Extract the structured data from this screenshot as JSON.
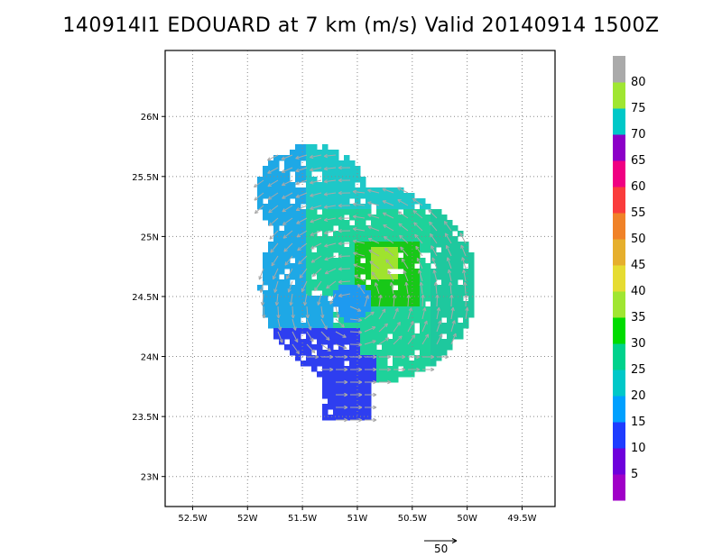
{
  "chart_data": {
    "type": "heatmap",
    "title": "140914I1 EDOUARD at 7 km (m/s) Valid 20140914 1500Z",
    "x_axis": {
      "range_deg_west": [
        52.75,
        49.2
      ],
      "ticks": [
        {
          "value": 52.5,
          "label": "52.5W"
        },
        {
          "value": 52.0,
          "label": "52W"
        },
        {
          "value": 51.5,
          "label": "51.5W"
        },
        {
          "value": 51.0,
          "label": "51W"
        },
        {
          "value": 50.5,
          "label": "50.5W"
        },
        {
          "value": 50.0,
          "label": "50W"
        },
        {
          "value": 49.5,
          "label": "49.5W"
        }
      ]
    },
    "y_axis": {
      "range_deg_north": [
        22.75,
        26.55
      ],
      "ticks": [
        {
          "value": 23.0,
          "label": "23N"
        },
        {
          "value": 23.5,
          "label": "23.5N"
        },
        {
          "value": 24.0,
          "label": "24N"
        },
        {
          "value": 24.5,
          "label": "24.5N"
        },
        {
          "value": 25.0,
          "label": "25N"
        },
        {
          "value": 25.5,
          "label": "25.5N"
        },
        {
          "value": 26.0,
          "label": "26N"
        }
      ]
    },
    "grid": true,
    "colorbar": {
      "placement": "right",
      "labels": [
        "5",
        "10",
        "15",
        "20",
        "25",
        "30",
        "35",
        "40",
        "45",
        "50",
        "55",
        "60",
        "65",
        "70",
        "75",
        "80"
      ],
      "colors": [
        "#a000c8",
        "#6e00dc",
        "#1e3cff",
        "#00a0ff",
        "#00c8c8",
        "#00d28c",
        "#00dc00",
        "#a0e632",
        "#e6dc32",
        "#e6af2d",
        "#f08228",
        "#fa3c3c",
        "#f00082",
        "#8c00c8",
        "#00c8c8",
        "#a0e632",
        "#aaaaaa"
      ]
    },
    "storm_center": {
      "lon_w": 51.05,
      "lat_n": 24.45
    },
    "reference_vector": {
      "label": "50",
      "value": 50
    }
  }
}
